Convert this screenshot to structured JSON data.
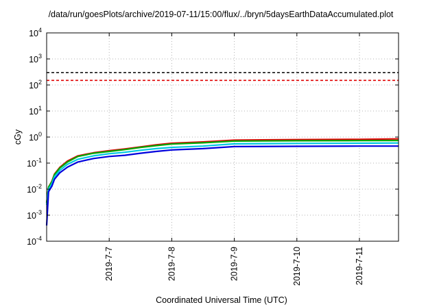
{
  "chart_data": {
    "type": "line",
    "title": "/data/run/goesPlots/archive/2019-07-11/15:00/flux/../bryn/5daysEarthDataAccumulated.plot",
    "xlabel": "Coordinated Universal Time (UTC)",
    "ylabel": "cGy",
    "x_scale": "time",
    "xlim": [
      "2019-07-06 00:00",
      "2019-07-11 15:00"
    ],
    "y_scale": "log",
    "ylim": [
      0.0001,
      10000
    ],
    "y_ticks": [
      {
        "value": 0.0001,
        "base": "10",
        "exp": "-4"
      },
      {
        "value": 0.001,
        "base": "10",
        "exp": "-3"
      },
      {
        "value": 0.01,
        "base": "10",
        "exp": "-2"
      },
      {
        "value": 0.1,
        "base": "10",
        "exp": "-1"
      },
      {
        "value": 1,
        "base": "10",
        "exp": "0"
      },
      {
        "value": 10,
        "base": "10",
        "exp": "1"
      },
      {
        "value": 100,
        "base": "10",
        "exp": "2"
      },
      {
        "value": 1000,
        "base": "10",
        "exp": "3"
      },
      {
        "value": 10000,
        "base": "10",
        "exp": "4"
      }
    ],
    "x_ticks": [
      {
        "value": "2019-07-07 00:00",
        "label": "2019-7-7"
      },
      {
        "value": "2019-07-08 00:00",
        "label": "2019-7-8"
      },
      {
        "value": "2019-07-09 00:00",
        "label": "2019-7-9"
      },
      {
        "value": "2019-07-10 00:00",
        "label": "2019-7-10"
      },
      {
        "value": "2019-07-11 00:00",
        "label": "2019-7-11"
      }
    ],
    "grid": true,
    "reference_lines": [
      {
        "y": 300,
        "color": "#000000",
        "style": "dashed"
      },
      {
        "y": 150,
        "color": "#e00000",
        "style": "dashed"
      }
    ],
    "series": [
      {
        "color": "#e00000",
        "x": [
          "2019-07-06 00:00",
          "2019-07-06 00:45",
          "2019-07-06 02:00",
          "2019-07-06 03:00",
          "2019-07-06 05:00",
          "2019-07-06 08:00",
          "2019-07-06 12:00",
          "2019-07-06 18:00",
          "2019-07-07 00:00",
          "2019-07-07 06:00",
          "2019-07-07 12:00",
          "2019-07-07 18:00",
          "2019-07-08 00:00",
          "2019-07-08 12:00",
          "2019-07-09 00:00",
          "2019-07-10 00:00",
          "2019-07-11 00:00",
          "2019-07-11 15:00"
        ],
        "y": [
          0.003,
          0.012,
          0.02,
          0.038,
          0.068,
          0.12,
          0.19,
          0.25,
          0.3,
          0.35,
          0.42,
          0.5,
          0.58,
          0.65,
          0.76,
          0.8,
          0.82,
          0.85
        ]
      },
      {
        "color": "#00aa00",
        "x": [
          "2019-07-06 00:00",
          "2019-07-06 00:45",
          "2019-07-06 02:00",
          "2019-07-06 03:00",
          "2019-07-06 05:00",
          "2019-07-06 08:00",
          "2019-07-06 12:00",
          "2019-07-06 18:00",
          "2019-07-07 00:00",
          "2019-07-07 06:00",
          "2019-07-07 12:00",
          "2019-07-07 18:00",
          "2019-07-08 00:00",
          "2019-07-08 12:00",
          "2019-07-09 00:00",
          "2019-07-10 00:00",
          "2019-07-11 00:00",
          "2019-07-11 15:00"
        ],
        "y": [
          0.003,
          0.012,
          0.019,
          0.036,
          0.064,
          0.11,
          0.18,
          0.24,
          0.28,
          0.33,
          0.4,
          0.47,
          0.54,
          0.6,
          0.7,
          0.72,
          0.73,
          0.74
        ]
      },
      {
        "color": "#00c8e0",
        "x": [
          "2019-07-06 00:00",
          "2019-07-06 00:45",
          "2019-07-06 02:00",
          "2019-07-06 03:00",
          "2019-07-06 05:00",
          "2019-07-06 08:00",
          "2019-07-06 12:00",
          "2019-07-06 18:00",
          "2019-07-07 00:00",
          "2019-07-07 06:00",
          "2019-07-07 12:00",
          "2019-07-07 18:00",
          "2019-07-08 00:00",
          "2019-07-08 12:00",
          "2019-07-09 00:00",
          "2019-07-10 00:00",
          "2019-07-11 00:00",
          "2019-07-11 15:00"
        ],
        "y": [
          0.0025,
          0.01,
          0.016,
          0.03,
          0.052,
          0.09,
          0.14,
          0.19,
          0.23,
          0.26,
          0.31,
          0.36,
          0.4,
          0.45,
          0.55,
          0.57,
          0.58,
          0.59
        ]
      },
      {
        "color": "#0000dd",
        "x": [
          "2019-07-06 00:00",
          "2019-07-06 00:45",
          "2019-07-06 02:00",
          "2019-07-06 03:00",
          "2019-07-06 05:00",
          "2019-07-06 08:00",
          "2019-07-06 12:00",
          "2019-07-06 18:00",
          "2019-07-07 00:00",
          "2019-07-07 06:00",
          "2019-07-07 12:00",
          "2019-07-07 18:00",
          "2019-07-08 00:00",
          "2019-07-08 12:00",
          "2019-07-09 00:00",
          "2019-07-10 00:00",
          "2019-07-11 00:00",
          "2019-07-11 15:00"
        ],
        "y": [
          0.0004,
          0.008,
          0.013,
          0.024,
          0.042,
          0.07,
          0.11,
          0.15,
          0.18,
          0.2,
          0.24,
          0.28,
          0.32,
          0.36,
          0.43,
          0.44,
          0.45,
          0.45
        ]
      }
    ]
  }
}
